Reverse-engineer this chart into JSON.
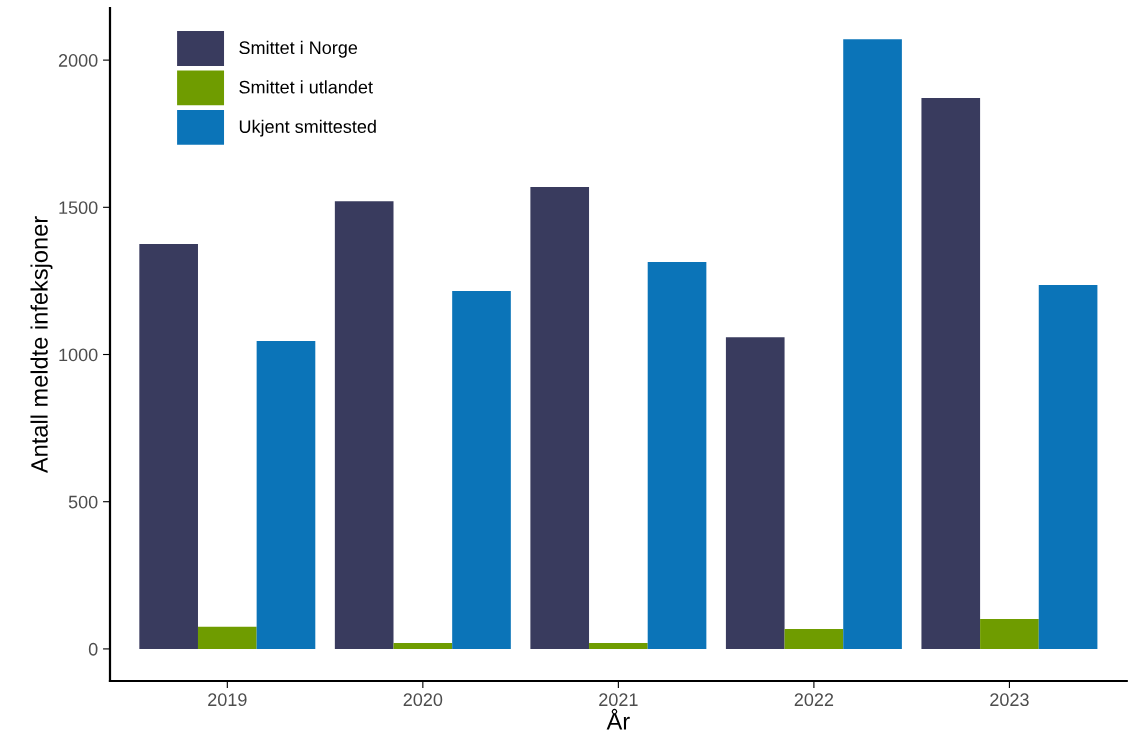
{
  "chart_data": {
    "type": "bar",
    "xlabel": "År",
    "ylabel": "Antall meldte infeksjoner",
    "categories": [
      "2019",
      "2020",
      "2021",
      "2022",
      "2023"
    ],
    "series": [
      {
        "name": "Smittet i Norge",
        "color": "#393b5e",
        "values": [
          1375,
          1521,
          1569,
          1059,
          1871
        ]
      },
      {
        "name": "Smittet i utlandet",
        "color": "#6f9c00",
        "values": [
          75,
          20,
          20,
          68,
          102
        ]
      },
      {
        "name": "Ukjent smittested",
        "color": "#0b74b8",
        "values": [
          1046,
          1216,
          1314,
          2071,
          1236
        ]
      }
    ],
    "ylim": [
      -109,
      2177
    ],
    "yticks": [
      0,
      500,
      1000,
      1500,
      2000
    ],
    "grid": false,
    "legend": "top left"
  }
}
